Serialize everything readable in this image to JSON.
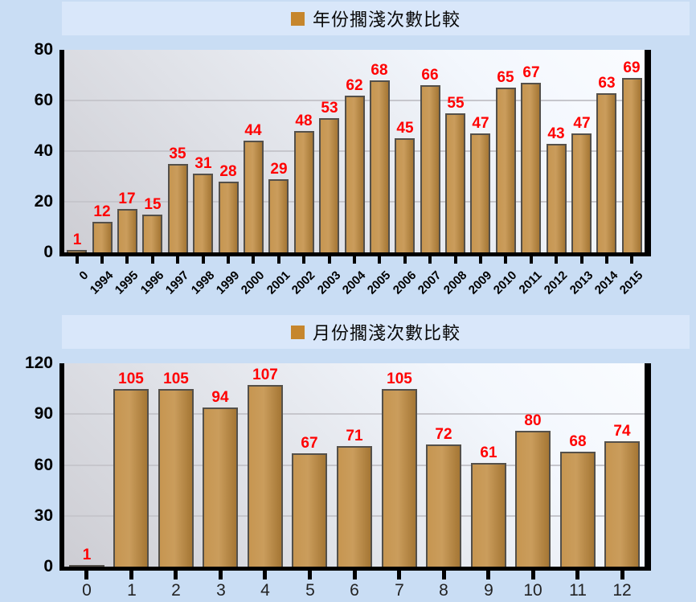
{
  "page": {
    "background_color": "#C9DDF4"
  },
  "chart_data": [
    {
      "type": "bar",
      "title": "年份擱淺次數比較",
      "legend": {
        "swatch_color": "#C6862D",
        "position": "top-center"
      },
      "categories": [
        "0",
        "1994",
        "1995",
        "1996",
        "1997",
        "1998",
        "1999",
        "2000",
        "2001",
        "2002",
        "2003",
        "2004",
        "2005",
        "2006",
        "2007",
        "2008",
        "2009",
        "2010",
        "2011",
        "2012",
        "2013",
        "2014",
        "2015"
      ],
      "values": [
        1,
        12,
        17,
        15,
        35,
        31,
        28,
        44,
        29,
        48,
        53,
        62,
        68,
        45,
        66,
        55,
        47,
        65,
        67,
        43,
        47,
        63,
        69
      ],
      "xlabel": "",
      "ylabel": "",
      "ylim": [
        0,
        80
      ],
      "yticks": [
        0,
        20,
        40,
        60,
        80
      ],
      "grid": true,
      "x_tick_rotation": -45,
      "bar_color": "#C08A3D",
      "bar_border_color": "#54504A",
      "value_label_color": "#FF0000",
      "axis_color": "#000000"
    },
    {
      "type": "bar",
      "title": "月份擱淺次數比較",
      "legend": {
        "swatch_color": "#C6862D",
        "position": "top-center"
      },
      "categories": [
        "0",
        "1",
        "2",
        "3",
        "4",
        "5",
        "6",
        "7",
        "8",
        "9",
        "10",
        "11",
        "12"
      ],
      "values": [
        1,
        105,
        105,
        94,
        107,
        67,
        71,
        105,
        72,
        61,
        80,
        68,
        74
      ],
      "xlabel": "",
      "ylabel": "",
      "ylim": [
        0,
        120
      ],
      "yticks": [
        0,
        30,
        60,
        90,
        120
      ],
      "grid": true,
      "x_tick_rotation": 0,
      "bar_color": "#C08A3D",
      "bar_border_color": "#54504A",
      "value_label_color": "#FF0000",
      "axis_color": "#000000"
    }
  ]
}
